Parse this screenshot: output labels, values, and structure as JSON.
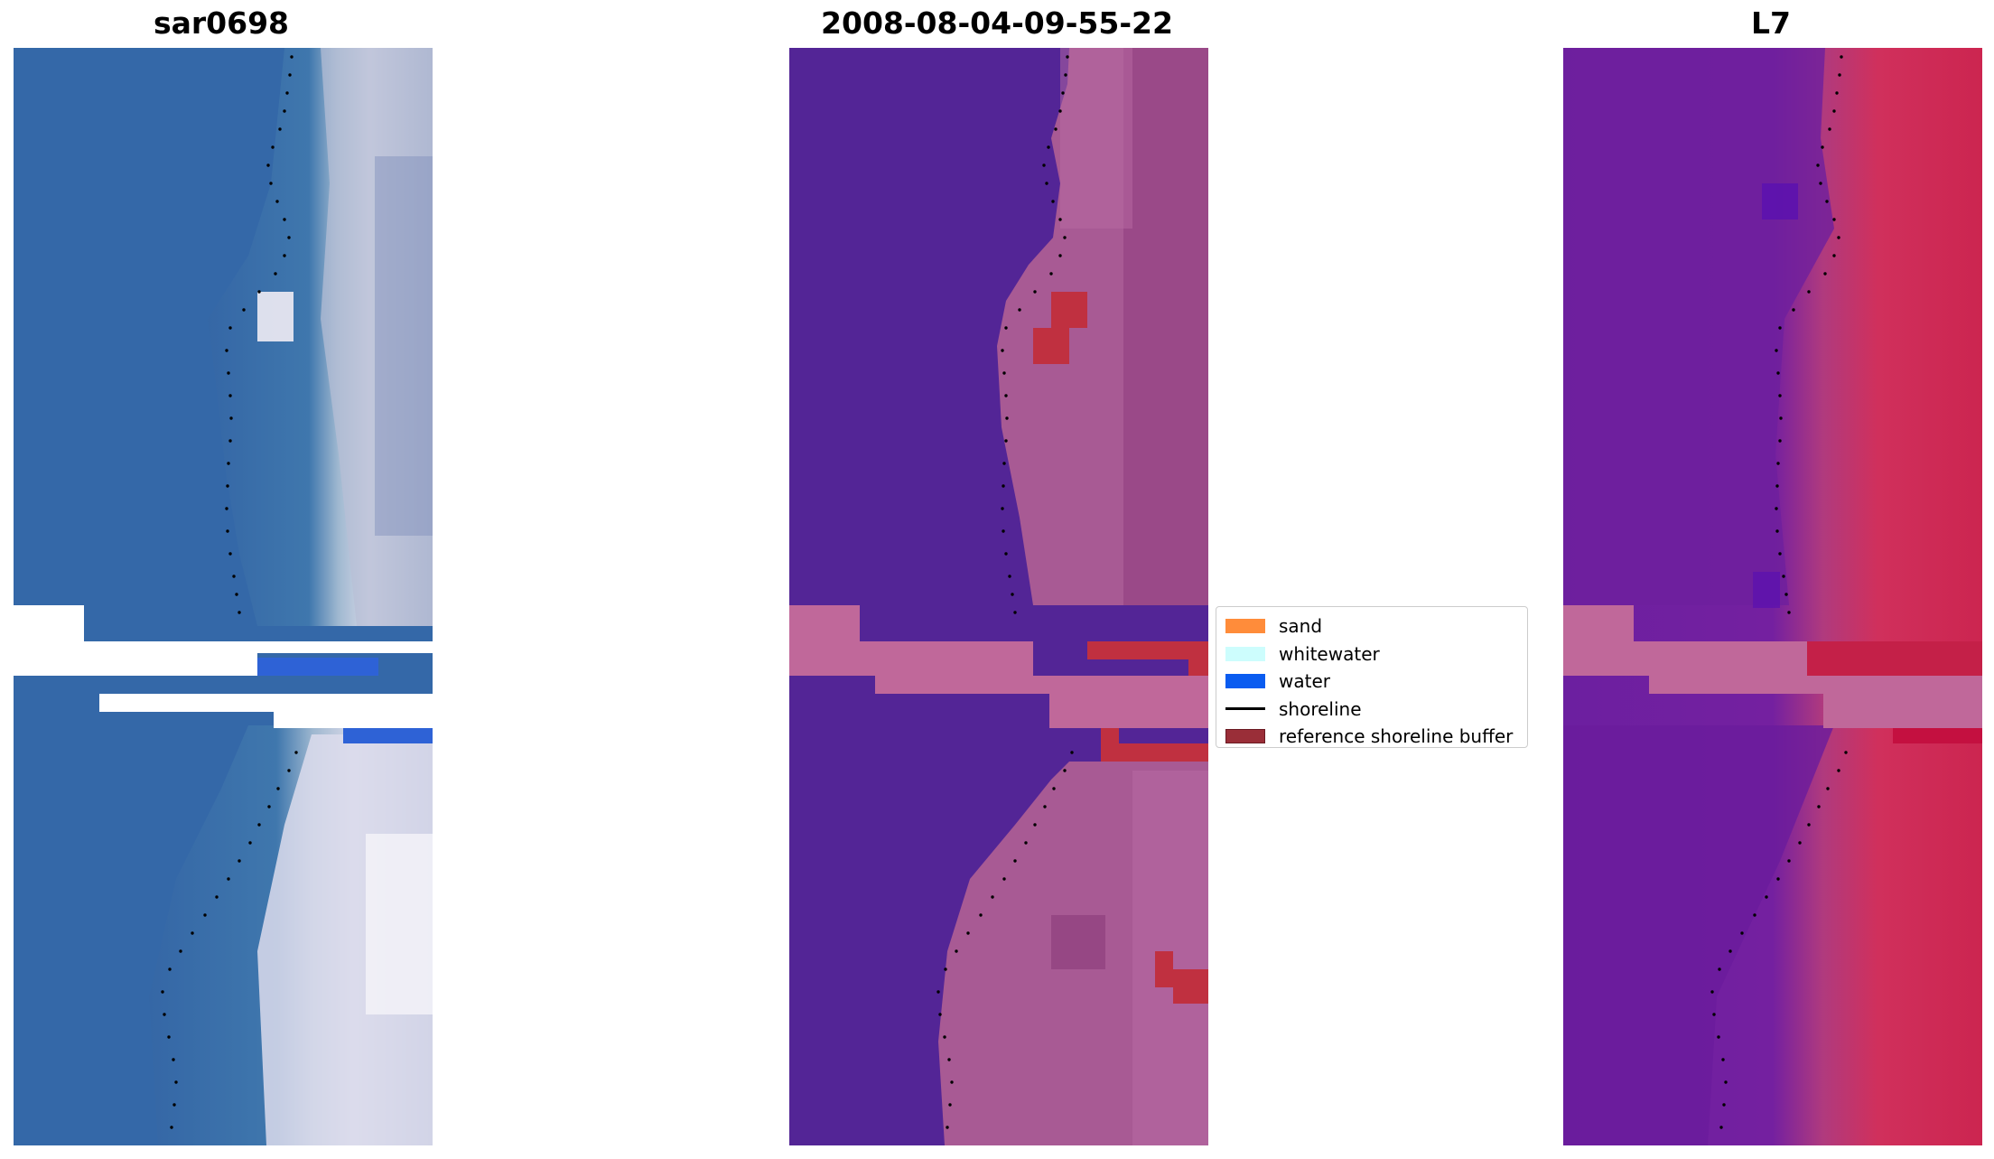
{
  "panels": [
    {
      "title": "sar0698",
      "key": "rgb"
    },
    {
      "title": "2008-08-04-09-55-22",
      "key": "classified"
    },
    {
      "title": "L7",
      "key": "index"
    }
  ],
  "legend": {
    "items": [
      {
        "label": "sand",
        "type": "patch",
        "color": "#ff8c3a"
      },
      {
        "label": "whitewater",
        "type": "patch",
        "color": "#cdfdfd"
      },
      {
        "label": "water",
        "type": "patch",
        "color": "#0a5cf0"
      },
      {
        "label": "shoreline",
        "type": "line",
        "color": "#000000"
      },
      {
        "label": "reference shoreline buffer",
        "type": "patch",
        "color": "#9a2e38"
      }
    ]
  },
  "colors": {
    "water_blue": "#3468a8",
    "surf_white": "#d8d8e8",
    "class_water": "#532596",
    "class_land": "#a85a94",
    "buffer_red": "#c03040",
    "nodata_pink": "#c0689a",
    "index_purple": "#6c1fa0",
    "index_red": "#d02650"
  }
}
